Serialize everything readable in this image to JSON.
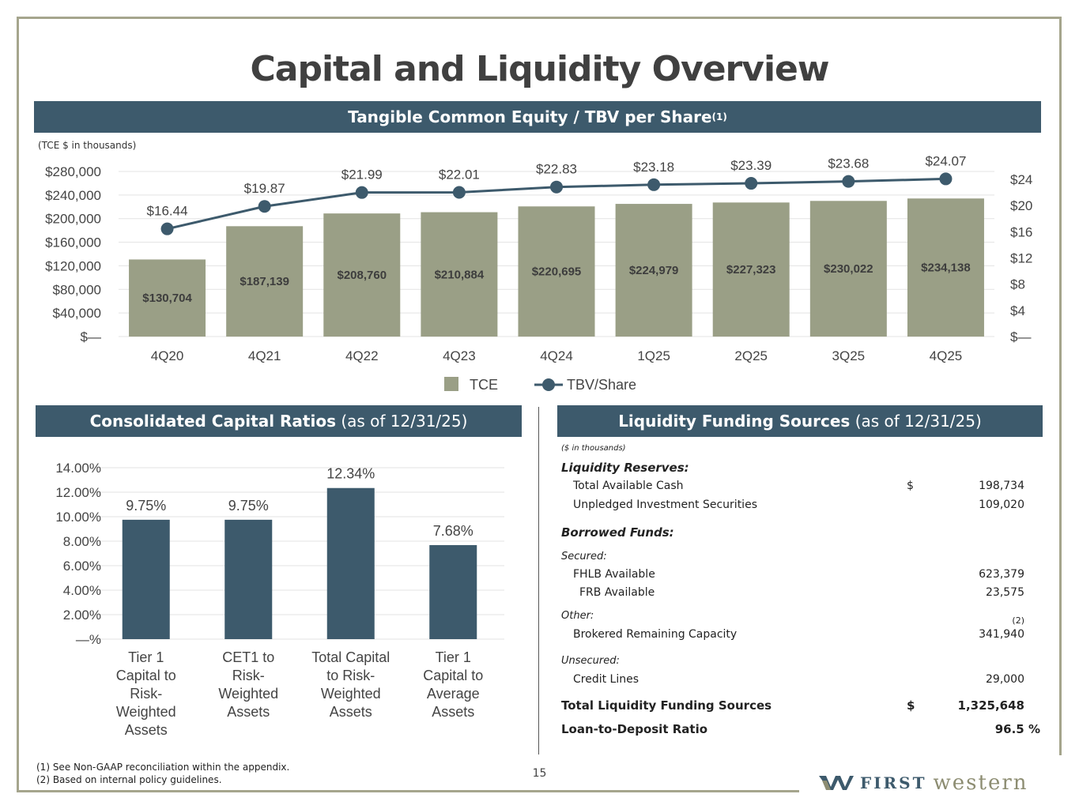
{
  "title": "Capital and Liquidity Overview",
  "banner_top": {
    "label": "Tangible Common Equity / TBV per Share",
    "sup": "(1)"
  },
  "tce_note": "(TCE $ in thousands)",
  "banner_left": {
    "bold": "Consolidated Capital Ratios",
    "rest": " (as of 12/31/25)"
  },
  "banner_right": {
    "bold": "Liquidity Funding Sources",
    "rest": " (as of 12/31/25)"
  },
  "chart_data": [
    {
      "type": "bar+line",
      "title": "Tangible Common Equity / TBV per Share",
      "categories": [
        "4Q20",
        "4Q21",
        "4Q22",
        "4Q23",
        "4Q24",
        "1Q25",
        "2Q25",
        "3Q25",
        "4Q25"
      ],
      "series": [
        {
          "name": "TCE",
          "type": "bar",
          "axis": "left",
          "values": [
            130704,
            187139,
            208760,
            210884,
            220695,
            224979,
            227323,
            230022,
            234138
          ],
          "labels": [
            "$130,704",
            "$187,139",
            "$208,760",
            "$210,884",
            "$220,695",
            "$224,979",
            "$227,323",
            "$230,022",
            "$234,138"
          ],
          "color": "#9a9f86"
        },
        {
          "name": "TBV/Share",
          "type": "line",
          "axis": "right",
          "values": [
            16.44,
            19.87,
            21.99,
            22.01,
            22.83,
            23.18,
            23.39,
            23.68,
            24.07
          ],
          "labels": [
            "$16.44",
            "$19.87",
            "$21.99",
            "$22.01",
            "$22.83",
            "$23.18",
            "$23.39",
            "$23.68",
            "$24.07"
          ],
          "color": "#3d5a6c"
        }
      ],
      "left_axis": {
        "ylim": [
          0,
          280000
        ],
        "ticks": [
          "$—",
          "$40,000",
          "$80,000",
          "$120,000",
          "$160,000",
          "$200,000",
          "$240,000",
          "$280,000"
        ]
      },
      "right_axis": {
        "ylim": [
          0,
          25
        ],
        "ticks": [
          "$—",
          "$4",
          "$8",
          "$12",
          "$16",
          "$20",
          "$24"
        ]
      },
      "legend": [
        "TCE",
        "TBV/Share"
      ]
    },
    {
      "type": "bar",
      "title": "Consolidated Capital Ratios (as of 12/31/25)",
      "categories": [
        [
          "Tier 1",
          "Capital to",
          "Risk-",
          "Weighted",
          "Assets"
        ],
        [
          "CET1 to",
          "Risk-",
          "Weighted",
          "Assets"
        ],
        [
          "Total Capital",
          "to Risk-",
          "Weighted",
          "Assets"
        ],
        [
          "Tier 1",
          "Capital to",
          "Average",
          "Assets"
        ]
      ],
      "values": [
        9.75,
        9.75,
        12.34,
        7.68
      ],
      "labels": [
        "9.75%",
        "9.75%",
        "12.34%",
        "7.68%"
      ],
      "ylim": [
        0,
        14
      ],
      "ticks": [
        "—%",
        "2.00%",
        "4.00%",
        "6.00%",
        "8.00%",
        "10.00%",
        "12.00%",
        "14.00%"
      ],
      "color": "#3d5a6c"
    }
  ],
  "liquidity": {
    "units": "($ in thousands)",
    "reserves_header": "Liquidity Reserves:",
    "cash_label": "Total Available Cash",
    "cash_dollar": "$",
    "cash_value": "198,734",
    "securities_label": "Unpledged Investment Securities",
    "securities_value": "109,020",
    "borrowed_header": "Borrowed Funds:",
    "secured_label": "Secured:",
    "fhlb_label": "FHLB Available",
    "fhlb_value": "623,379",
    "frb_label": "FRB Available",
    "frb_value": "23,575",
    "other_label": "Other:",
    "other_note": "(2)",
    "brokered_label": "Brokered Remaining Capacity",
    "brokered_value": "341,940",
    "unsecured_label": "Unsecured:",
    "credit_label": "Credit Lines",
    "credit_value": "29,000",
    "total_label": "Total Liquidity Funding Sources",
    "total_dollar": "$",
    "total_value": "1,325,648",
    "ltd_label": "Loan-to-Deposit Ratio",
    "ltd_value": "96.5 %"
  },
  "footnotes": [
    "(1)  See Non-GAAP reconciliation within the appendix.",
    "(2)  Based on internal policy guidelines."
  ],
  "page_number": "15",
  "logo": {
    "first": "FIRST",
    "western": "western"
  }
}
